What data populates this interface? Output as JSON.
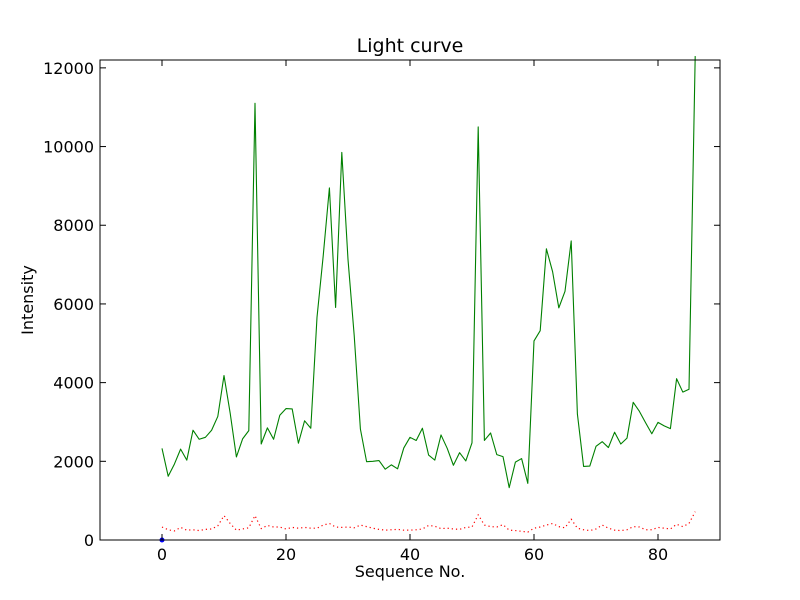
{
  "chart_data": {
    "type": "line",
    "title": "Light curve",
    "xlabel": "Sequence No.",
    "ylabel": "Intensity",
    "xlim": [
      -10,
      90
    ],
    "ylim": [
      0,
      12200
    ],
    "xticks": [
      0,
      20,
      40,
      60,
      80
    ],
    "yticks": [
      0,
      2000,
      4000,
      6000,
      8000,
      10000,
      12000
    ],
    "grid": false,
    "series": [
      {
        "color": "#008000",
        "linestyle": "solid",
        "x": [
          0,
          1,
          2,
          3,
          4,
          5,
          6,
          7,
          8,
          9,
          10,
          11,
          12,
          13,
          14,
          15,
          16,
          17,
          18,
          19,
          20,
          21,
          22,
          23,
          24,
          25,
          26,
          27,
          28,
          29,
          30,
          31,
          32,
          33,
          34,
          35,
          36,
          37,
          38,
          39,
          40,
          41,
          42,
          43,
          44,
          45,
          46,
          47,
          48,
          49,
          50,
          51,
          52,
          53,
          54,
          55,
          56,
          57,
          58,
          59,
          60,
          61,
          62,
          63,
          64,
          65,
          66,
          67,
          68,
          69,
          70,
          71,
          72,
          73,
          74,
          75,
          76,
          77,
          78,
          79,
          80,
          81,
          82,
          83,
          84,
          85,
          86
        ],
        "values": [
          2330,
          1620,
          1930,
          2310,
          2030,
          2790,
          2560,
          2610,
          2790,
          3140,
          4180,
          3220,
          2110,
          2570,
          2780,
          11100,
          2440,
          2850,
          2560,
          3170,
          3340,
          3330,
          2460,
          3030,
          2840,
          5660,
          7220,
          8950,
          5910,
          9850,
          7130,
          5200,
          2820,
          1990,
          2000,
          2020,
          1800,
          1910,
          1810,
          2340,
          2610,
          2530,
          2840,
          2160,
          2030,
          2670,
          2330,
          1900,
          2220,
          2010,
          2470,
          10500,
          2530,
          2720,
          2170,
          2120,
          1330,
          1980,
          2070,
          1440,
          5060,
          5320,
          7400,
          6820,
          5900,
          6320,
          7600,
          3200,
          1870,
          1880,
          2380,
          2500,
          2350,
          2740,
          2440,
          2590,
          3500,
          3270,
          2980,
          2700,
          2990,
          2900,
          2830,
          4100,
          3760,
          3830,
          12300
        ]
      },
      {
        "color": "#ff0000",
        "linestyle": "dotted",
        "x": [
          0,
          1,
          2,
          3,
          4,
          5,
          6,
          7,
          8,
          9,
          10,
          11,
          12,
          13,
          14,
          15,
          16,
          17,
          18,
          19,
          20,
          21,
          22,
          23,
          24,
          25,
          26,
          27,
          28,
          29,
          30,
          31,
          32,
          33,
          34,
          35,
          36,
          37,
          38,
          39,
          40,
          41,
          42,
          43,
          44,
          45,
          46,
          47,
          48,
          49,
          50,
          51,
          52,
          53,
          54,
          55,
          56,
          57,
          58,
          59,
          60,
          61,
          62,
          63,
          64,
          65,
          66,
          67,
          68,
          69,
          70,
          71,
          72,
          73,
          74,
          75,
          76,
          77,
          78,
          79,
          80,
          81,
          82,
          83,
          84,
          85,
          86
        ],
        "values": [
          330,
          260,
          230,
          320,
          250,
          260,
          240,
          270,
          280,
          360,
          620,
          420,
          250,
          280,
          310,
          620,
          290,
          370,
          330,
          330,
          280,
          320,
          300,
          320,
          300,
          300,
          380,
          420,
          330,
          320,
          330,
          310,
          380,
          340,
          300,
          270,
          250,
          260,
          270,
          250,
          250,
          260,
          280,
          370,
          350,
          290,
          300,
          280,
          270,
          320,
          330,
          640,
          380,
          340,
          330,
          390,
          250,
          240,
          220,
          200,
          300,
          330,
          380,
          420,
          340,
          310,
          530,
          300,
          260,
          240,
          280,
          380,
          300,
          250,
          240,
          260,
          340,
          330,
          260,
          260,
          320,
          300,
          280,
          400,
          340,
          420,
          720
        ]
      },
      {
        "color": "#0000ff",
        "linestyle": "solid",
        "x": [
          0
        ],
        "values": [
          0
        ]
      }
    ]
  }
}
